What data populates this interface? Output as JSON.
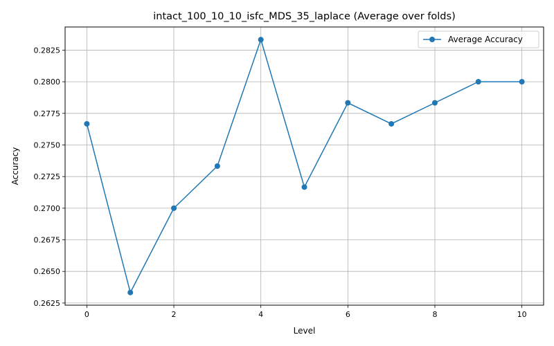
{
  "chart_data": {
    "type": "line",
    "title": "intact_100_10_10_isfc_MDS_35_laplace (Average over folds)",
    "xlabel": "Level",
    "ylabel": "Accuracy",
    "x": [
      0,
      1,
      2,
      3,
      4,
      5,
      6,
      7,
      8,
      9,
      10
    ],
    "series": [
      {
        "name": "Average Accuracy",
        "color": "#1f77b4",
        "marker": "circle",
        "values": [
          0.27667,
          0.26333,
          0.27,
          0.27333,
          0.28333,
          0.27167,
          0.27833,
          0.27667,
          0.27833,
          0.28,
          0.28
        ]
      }
    ],
    "xlim": [
      -0.5,
      10.5
    ],
    "ylim": [
      0.26233,
      0.28433
    ],
    "xticks": [
      0,
      2,
      4,
      6,
      8,
      10
    ],
    "xtick_labels": [
      "0",
      "2",
      "4",
      "6",
      "8",
      "10"
    ],
    "yticks": [
      0.2625,
      0.265,
      0.2675,
      0.27,
      0.2725,
      0.275,
      0.2775,
      0.28,
      0.2825
    ],
    "ytick_labels": [
      "0.2625",
      "0.2650",
      "0.2675",
      "0.2700",
      "0.2725",
      "0.2750",
      "0.2775",
      "0.2800",
      "0.2825"
    ],
    "grid": true,
    "legend_position": "top-right"
  }
}
